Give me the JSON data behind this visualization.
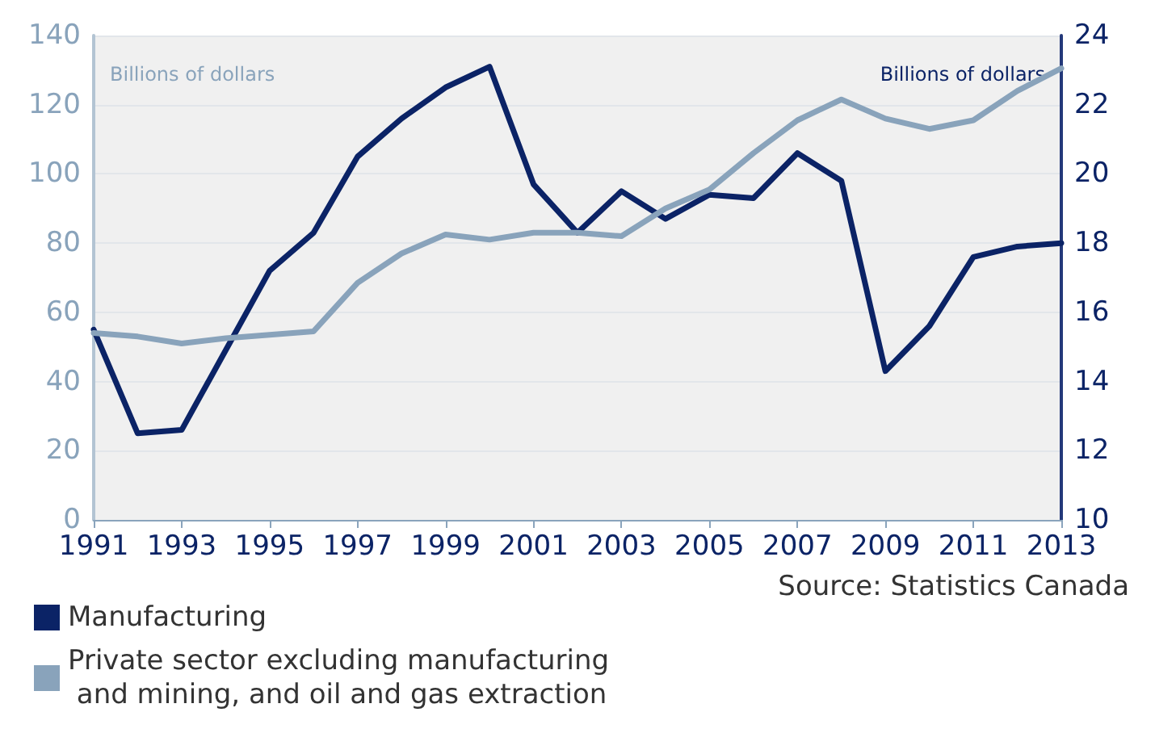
{
  "chart_data": {
    "type": "line",
    "ylabel": "Billions of dollars",
    "y2label": "Billions of dollars",
    "annotations": [
      "Source: Statistics Canada"
    ],
    "x": [
      1991,
      1992,
      1993,
      1994,
      1995,
      1996,
      1997,
      1998,
      1999,
      2000,
      2001,
      2002,
      2003,
      2004,
      2005,
      2006,
      2007,
      2008,
      2009,
      2010,
      2011,
      2012,
      2013
    ],
    "xlim": [
      1991,
      2013
    ],
    "xticks": [
      1991,
      1993,
      1995,
      1997,
      1999,
      2001,
      2003,
      2005,
      2007,
      2009,
      2011,
      2013
    ],
    "ylim": [
      0,
      140
    ],
    "yticks": [
      0,
      20,
      40,
      60,
      80,
      100,
      120,
      140
    ],
    "y2lim": [
      10,
      24
    ],
    "y2ticks": [
      10,
      12,
      14,
      16,
      18,
      20,
      22,
      24
    ],
    "grid": "y",
    "legend": "bottom left",
    "marker": "none",
    "line_style": "solid",
    "series": [
      {
        "name": "Manufacturing",
        "color": "#0b2366",
        "axis": "y2",
        "values": [
          15.5,
          12.5,
          12.6,
          14.9,
          17.2,
          18.3,
          20.5,
          21.6,
          22.5,
          23.1,
          19.7,
          18.3,
          19.5,
          18.7,
          19.4,
          19.3,
          20.6,
          19.8,
          14.3,
          15.6,
          17.6,
          17.9,
          18
        ]
      },
      {
        "name": "Private sector excluding manufacturing and mining, and oil and gas extraction",
        "color": "#89a3bb",
        "values": [
          54,
          53,
          51,
          52.5,
          53.5,
          54.5,
          68.5,
          77,
          82.5,
          81,
          83,
          83,
          82,
          90,
          95.5,
          106,
          115.5,
          121.5,
          116,
          113,
          115.5,
          124,
          130.5
        ]
      }
    ]
  }
}
